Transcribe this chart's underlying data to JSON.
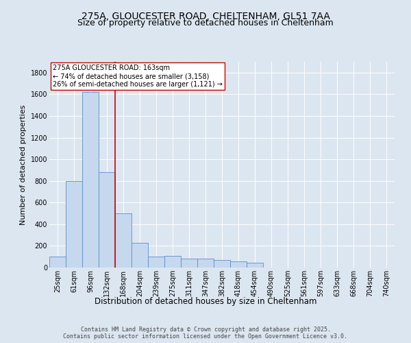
{
  "title_line1": "275A, GLOUCESTER ROAD, CHELTENHAM, GL51 7AA",
  "title_line2": "Size of property relative to detached houses in Cheltenham",
  "xlabel": "Distribution of detached houses by size in Cheltenham",
  "ylabel": "Number of detached properties",
  "categories": [
    "25sqm",
    "61sqm",
    "96sqm",
    "132sqm",
    "168sqm",
    "204sqm",
    "239sqm",
    "275sqm",
    "311sqm",
    "347sqm",
    "382sqm",
    "418sqm",
    "454sqm",
    "490sqm",
    "525sqm",
    "561sqm",
    "597sqm",
    "633sqm",
    "668sqm",
    "704sqm",
    "740sqm"
  ],
  "values": [
    100,
    800,
    1620,
    880,
    500,
    230,
    100,
    105,
    85,
    85,
    70,
    55,
    45,
    0,
    0,
    0,
    0,
    0,
    0,
    0,
    0
  ],
  "bar_color": "#c5d8ed",
  "bar_edge_color": "#5b8fc9",
  "vline_color": "#cc0000",
  "annotation_text": "275A GLOUCESTER ROAD: 163sqm\n← 74% of detached houses are smaller (3,158)\n26% of semi-detached houses are larger (1,121) →",
  "annotation_box_facecolor": "#ffffff",
  "annotation_box_edgecolor": "#cc0000",
  "ylim": [
    0,
    1900
  ],
  "yticks": [
    0,
    200,
    400,
    600,
    800,
    1000,
    1200,
    1400,
    1600,
    1800
  ],
  "background_color": "#dce6f1",
  "plot_bg_color": "#dce6f1",
  "footer_text": "Contains HM Land Registry data © Crown copyright and database right 2025.\nContains public sector information licensed under the Open Government Licence v3.0.",
  "grid_color": "#ffffff",
  "title_fontsize": 10,
  "subtitle_fontsize": 9,
  "tick_fontsize": 7,
  "ylabel_fontsize": 8,
  "xlabel_fontsize": 8.5,
  "annotation_fontsize": 7
}
